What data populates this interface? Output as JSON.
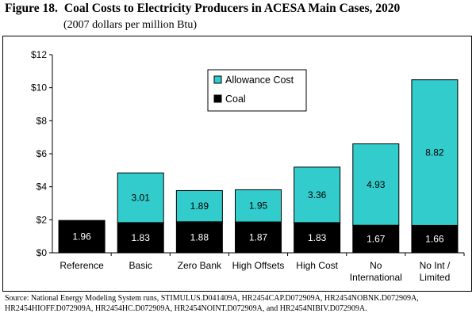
{
  "figure": {
    "number": "Figure 18.",
    "title": "Coal Costs to Electricity Producers in ACESA Main Cases, 2020",
    "subtitle": "(2007 dollars per million Btu)"
  },
  "source": {
    "line1": "Source:  National Energy Modeling System runs, STIMULUS.D041409A, HR2454CAP.D072909A, HR2454NOBNK.D072909A,",
    "line2": "HR2454HIOFF.D072909A, HR2454HC.D072909A, HR2454NOINT.D072909A, and HR2454NIBIV.D072909A."
  },
  "colors": {
    "coal": "#000000",
    "allowance": "#33CCCC",
    "bar_outline": "#000000",
    "grid": "#000000"
  },
  "chart_data": {
    "type": "bar",
    "stacked": true,
    "title": "Coal Costs to Electricity Producers in ACESA Main Cases, 2020",
    "ylabel": "2007 dollars per million Btu",
    "xlabel": "",
    "ylim": [
      0,
      12
    ],
    "yticks": [
      0,
      2,
      4,
      6,
      8,
      10,
      12
    ],
    "ytick_labels": [
      "$0",
      "$2",
      "$4",
      "$6",
      "$8",
      "$10",
      "$12"
    ],
    "grid": false,
    "legend_position": "top-center",
    "categories": [
      [
        "Reference"
      ],
      [
        "Basic"
      ],
      [
        "Zero Bank"
      ],
      [
        "High Offsets"
      ],
      [
        "High Cost"
      ],
      [
        "No",
        "International"
      ],
      [
        "No Int /",
        "Limited"
      ]
    ],
    "series": [
      {
        "name": "Coal",
        "values": [
          1.96,
          1.83,
          1.88,
          1.87,
          1.83,
          1.67,
          1.66
        ],
        "labels": [
          "1.96",
          "1.83",
          "1.88",
          "1.87",
          "1.83",
          "1.67",
          "1.66"
        ]
      },
      {
        "name": "Allowance Cost",
        "values": [
          0,
          3.01,
          1.89,
          1.95,
          3.36,
          4.93,
          8.82
        ],
        "labels": [
          "",
          "3.01",
          "1.89",
          "1.95",
          "3.36",
          "4.93",
          "8.82"
        ]
      }
    ],
    "legend": [
      "Allowance Cost",
      "Coal"
    ]
  }
}
